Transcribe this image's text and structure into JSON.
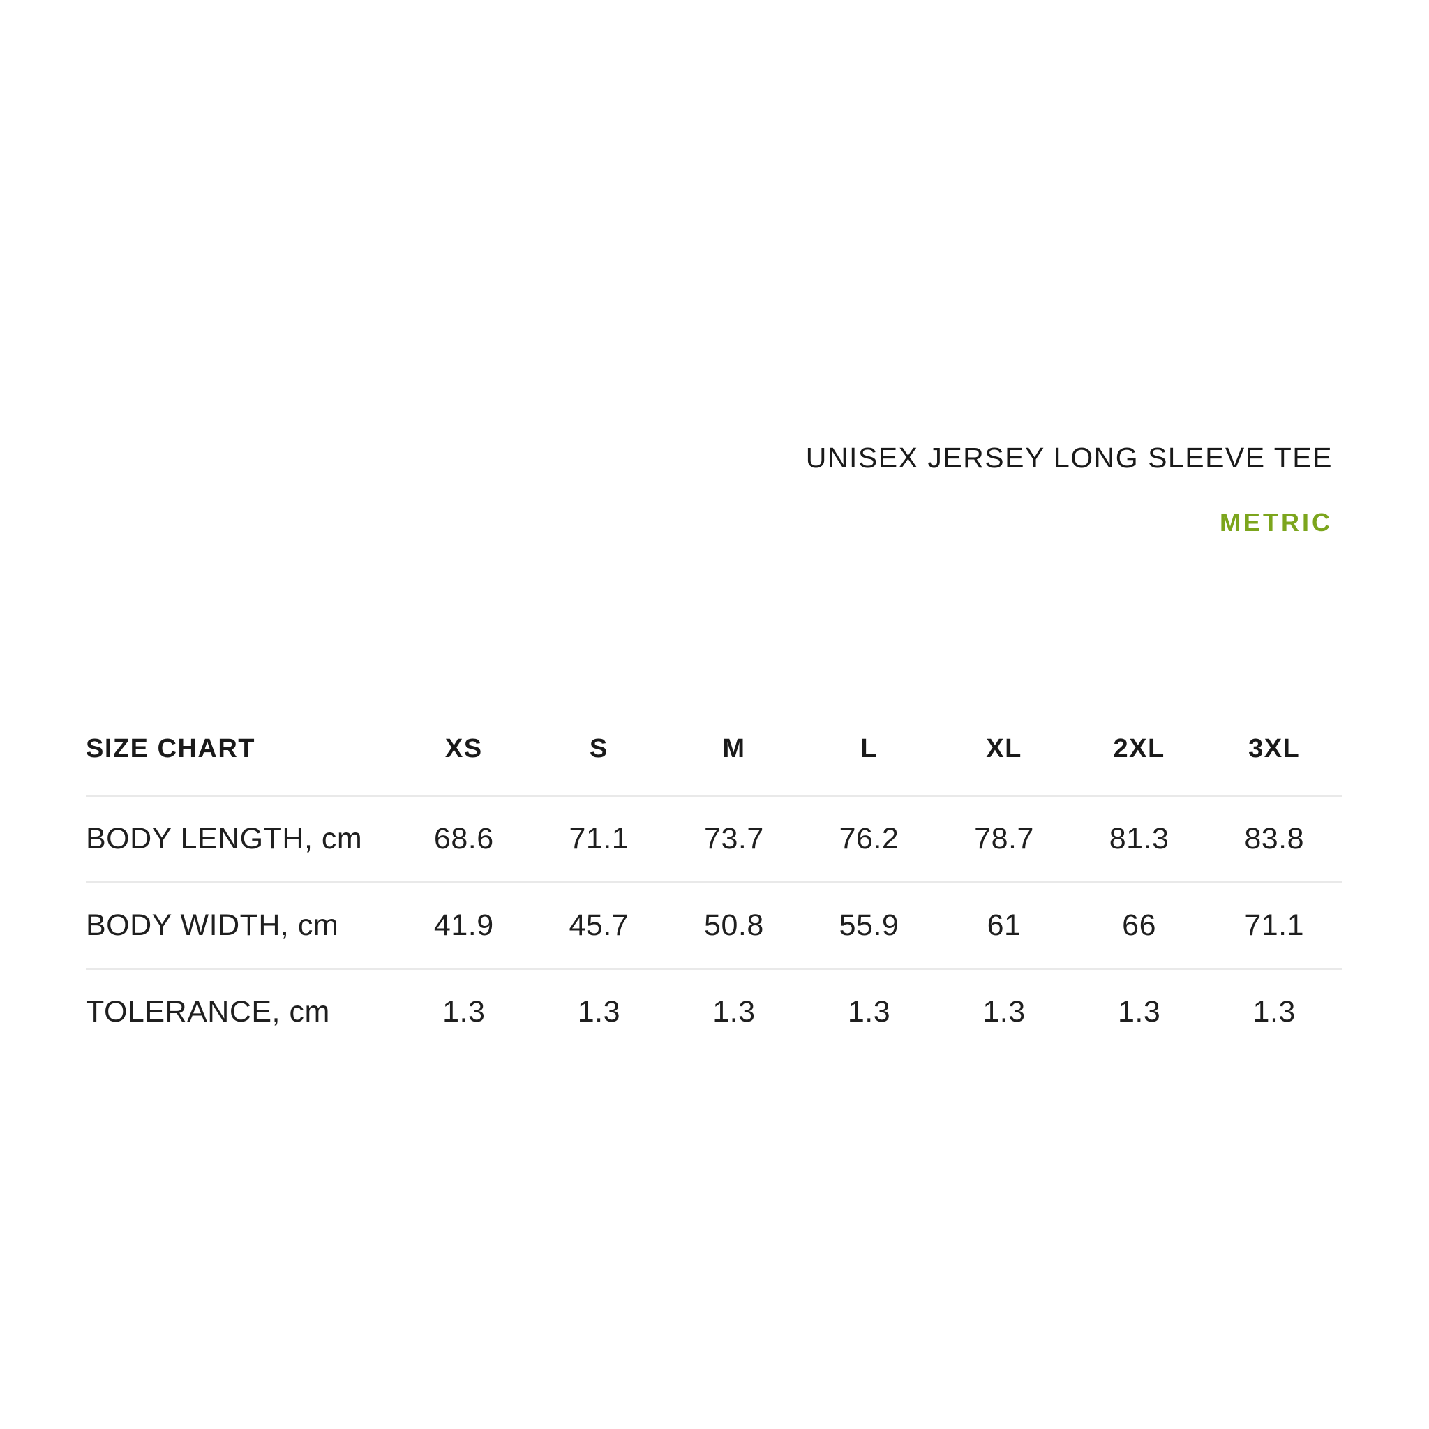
{
  "header": {
    "product_title": "UNISEX JERSEY LONG SLEEVE TEE",
    "unit_label": "METRIC"
  },
  "colors": {
    "accent_green": "#7CA51D",
    "text": "#1A1A1A",
    "divider": "#E9E9E9",
    "background": "#FFFFFF"
  },
  "table": {
    "corner_label": "SIZE CHART",
    "columns": [
      "XS",
      "S",
      "M",
      "L",
      "XL",
      "2XL",
      "3XL"
    ],
    "rows": [
      {
        "label": "BODY LENGTH, cm",
        "values": [
          "68.6",
          "71.1",
          "73.7",
          "76.2",
          "78.7",
          "81.3",
          "83.8"
        ]
      },
      {
        "label": "BODY WIDTH, cm",
        "values": [
          "41.9",
          "45.7",
          "50.8",
          "55.9",
          "61",
          "66",
          "71.1"
        ]
      },
      {
        "label": "TOLERANCE, cm",
        "values": [
          "1.3",
          "1.3",
          "1.3",
          "1.3",
          "1.3",
          "1.3",
          "1.3"
        ]
      }
    ]
  },
  "chart_data": {
    "type": "table",
    "title": "UNISEX JERSEY LONG SLEEVE TEE",
    "unit_system": "METRIC",
    "columns": [
      "XS",
      "S",
      "M",
      "L",
      "XL",
      "2XL",
      "3XL"
    ],
    "rows": [
      {
        "measurement": "BODY LENGTH",
        "unit": "cm",
        "values": [
          68.6,
          71.1,
          73.7,
          76.2,
          78.7,
          81.3,
          83.8
        ]
      },
      {
        "measurement": "BODY WIDTH",
        "unit": "cm",
        "values": [
          41.9,
          45.7,
          50.8,
          55.9,
          61,
          66,
          71.1
        ]
      },
      {
        "measurement": "TOLERANCE",
        "unit": "cm",
        "values": [
          1.3,
          1.3,
          1.3,
          1.3,
          1.3,
          1.3,
          1.3
        ]
      }
    ]
  }
}
